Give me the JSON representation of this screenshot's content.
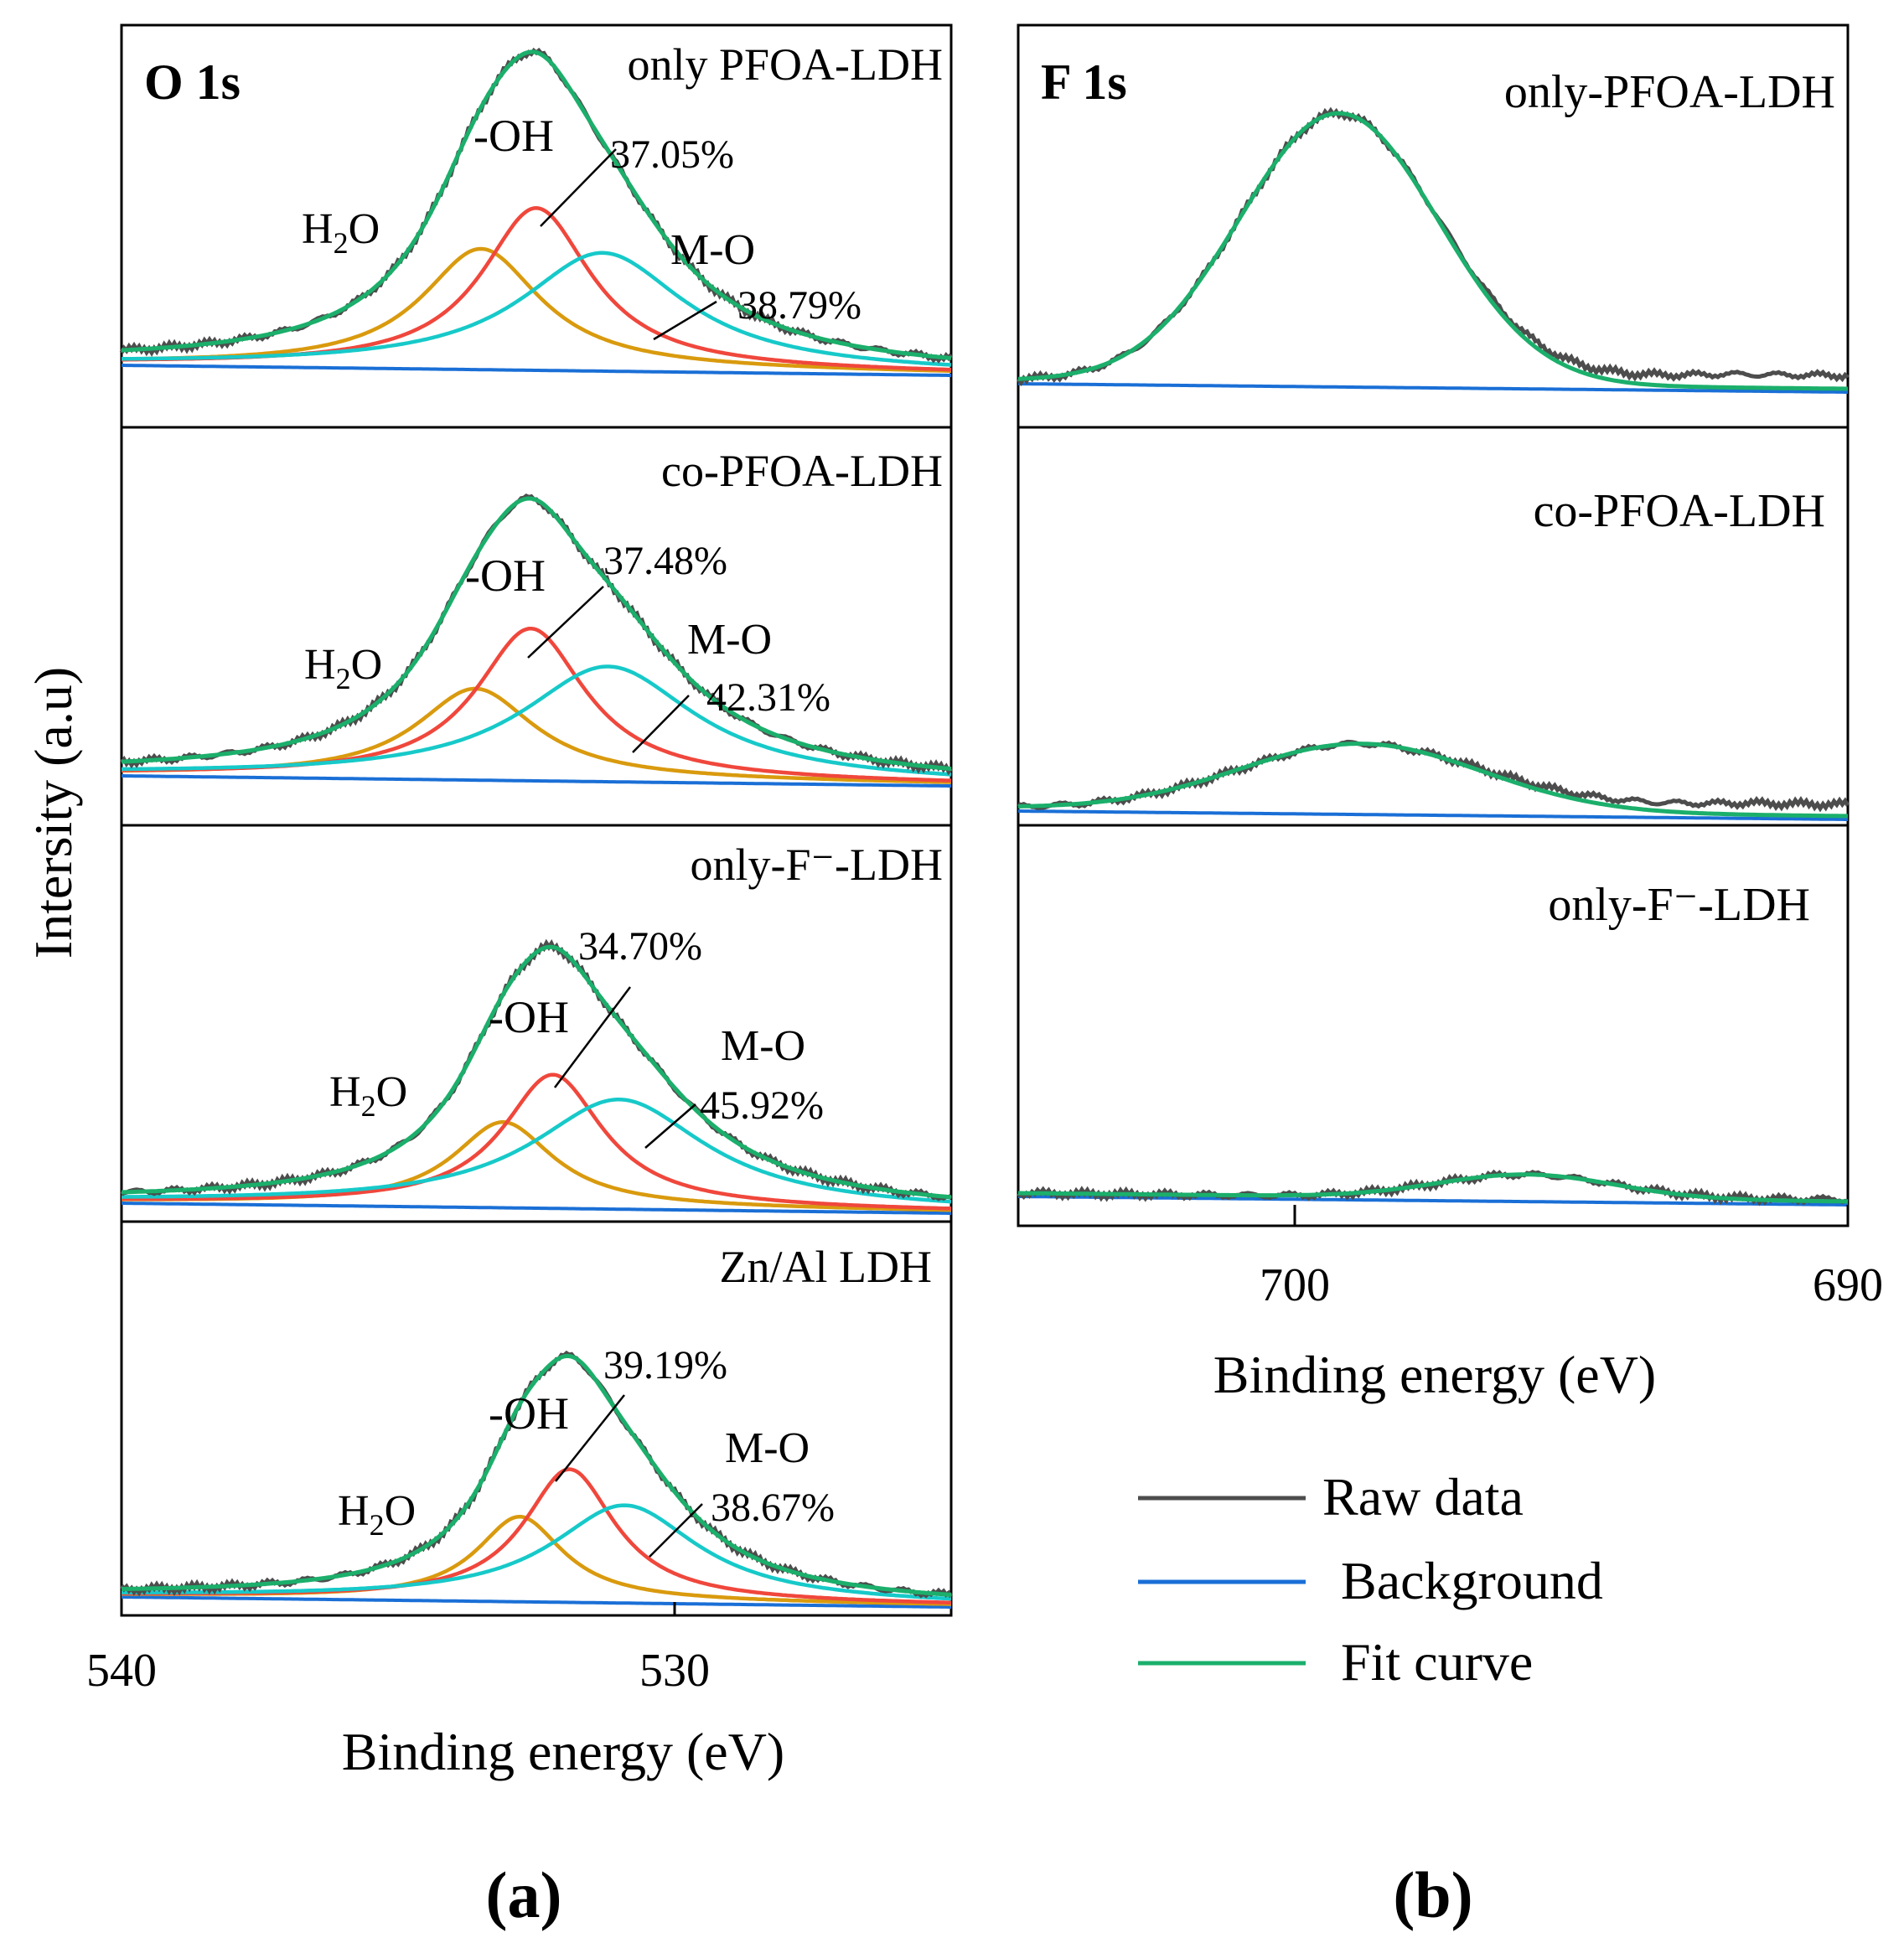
{
  "chart_data": [
    {
      "type": "line",
      "panel_label": "(a)",
      "title": "O 1s",
      "xlabel": "Binding energy (eV)",
      "ylabel": "Intersity (a.u)",
      "xlim": [
        540,
        525
      ],
      "xticks": [
        540,
        530
      ],
      "x_reversed": true,
      "subplots": [
        {
          "name": "only PFOA-LDH",
          "peaks": [
            {
              "name": "H2O",
              "center": 533.5,
              "height": 0.46,
              "width": 1.3,
              "color": "#D99A0E"
            },
            {
              "name": "-OH",
              "center": 532.5,
              "height": 0.62,
              "width": 1.2,
              "color": "#F0473C",
              "percent": "37.05%"
            },
            {
              "name": "M-O",
              "center": 531.3,
              "height": 0.45,
              "width": 1.8,
              "color": "#17C9C9",
              "percent": "38.79%"
            }
          ]
        },
        {
          "name": "co-PFOA-LDH",
          "peaks": [
            {
              "name": "H2O",
              "center": 533.6,
              "height": 0.34,
              "width": 1.3,
              "color": "#D99A0E"
            },
            {
              "name": "-OH",
              "center": 532.6,
              "height": 0.57,
              "width": 1.2,
              "color": "#F0473C",
              "percent": "37.48%"
            },
            {
              "name": "M-O",
              "center": 531.2,
              "height": 0.43,
              "width": 1.9,
              "color": "#17C9C9",
              "percent": "42.31%"
            }
          ]
        },
        {
          "name": "only-F⁻-LDH",
          "peaks": [
            {
              "name": "H2O",
              "center": 533.1,
              "height": 0.35,
              "width": 1.1,
              "color": "#D99A0E"
            },
            {
              "name": "-OH",
              "center": 532.2,
              "height": 0.55,
              "width": 1.1,
              "color": "#F0473C",
              "percent": "34.70%"
            },
            {
              "name": "M-O",
              "center": 531.0,
              "height": 0.45,
              "width": 1.9,
              "color": "#17C9C9",
              "percent": "45.92%"
            }
          ]
        },
        {
          "name": "Zn/Al LDH",
          "peaks": [
            {
              "name": "H2O",
              "center": 532.8,
              "height": 0.33,
              "width": 0.95,
              "color": "#D99A0E"
            },
            {
              "name": "-OH",
              "center": 531.9,
              "height": 0.52,
              "width": 1.0,
              "color": "#F0473C",
              "percent": "39.19%"
            },
            {
              "name": "M-O",
              "center": 530.9,
              "height": 0.38,
              "width": 1.6,
              "color": "#17C9C9",
              "percent": "38.67%"
            }
          ]
        }
      ],
      "labels": {
        "h2o": "H",
        "h2o_sub": "2",
        "h2o_end": "O",
        "oh": "-OH",
        "mo": "M-O"
      }
    },
    {
      "type": "line",
      "panel_label": "(b)",
      "title": "F 1s",
      "xlabel": "Binding energy (eV)",
      "xlim": [
        705,
        690
      ],
      "xticks": [
        700,
        690
      ],
      "x_reversed": true,
      "subplots": [
        {
          "name": "only-PFOA-LDH",
          "peak": {
            "center": 699.2,
            "height": 0.88,
            "width": 1.8
          }
        },
        {
          "name": "co-PFOA-LDH",
          "peak": {
            "center": 698.8,
            "height": 0.35,
            "width": 2.2
          }
        },
        {
          "name": "only-F⁻-LDH",
          "peak": {
            "center": 695.8,
            "height": 0.15,
            "width": 1.6
          }
        }
      ]
    }
  ],
  "legend": {
    "placement": "bottom-right",
    "items": [
      {
        "label": "Raw data",
        "color": "#4D4D4D"
      },
      {
        "label": "Background",
        "color": "#1A6FD6"
      },
      {
        "label": "Fit curve",
        "color": "#1BAF6B"
      }
    ]
  }
}
